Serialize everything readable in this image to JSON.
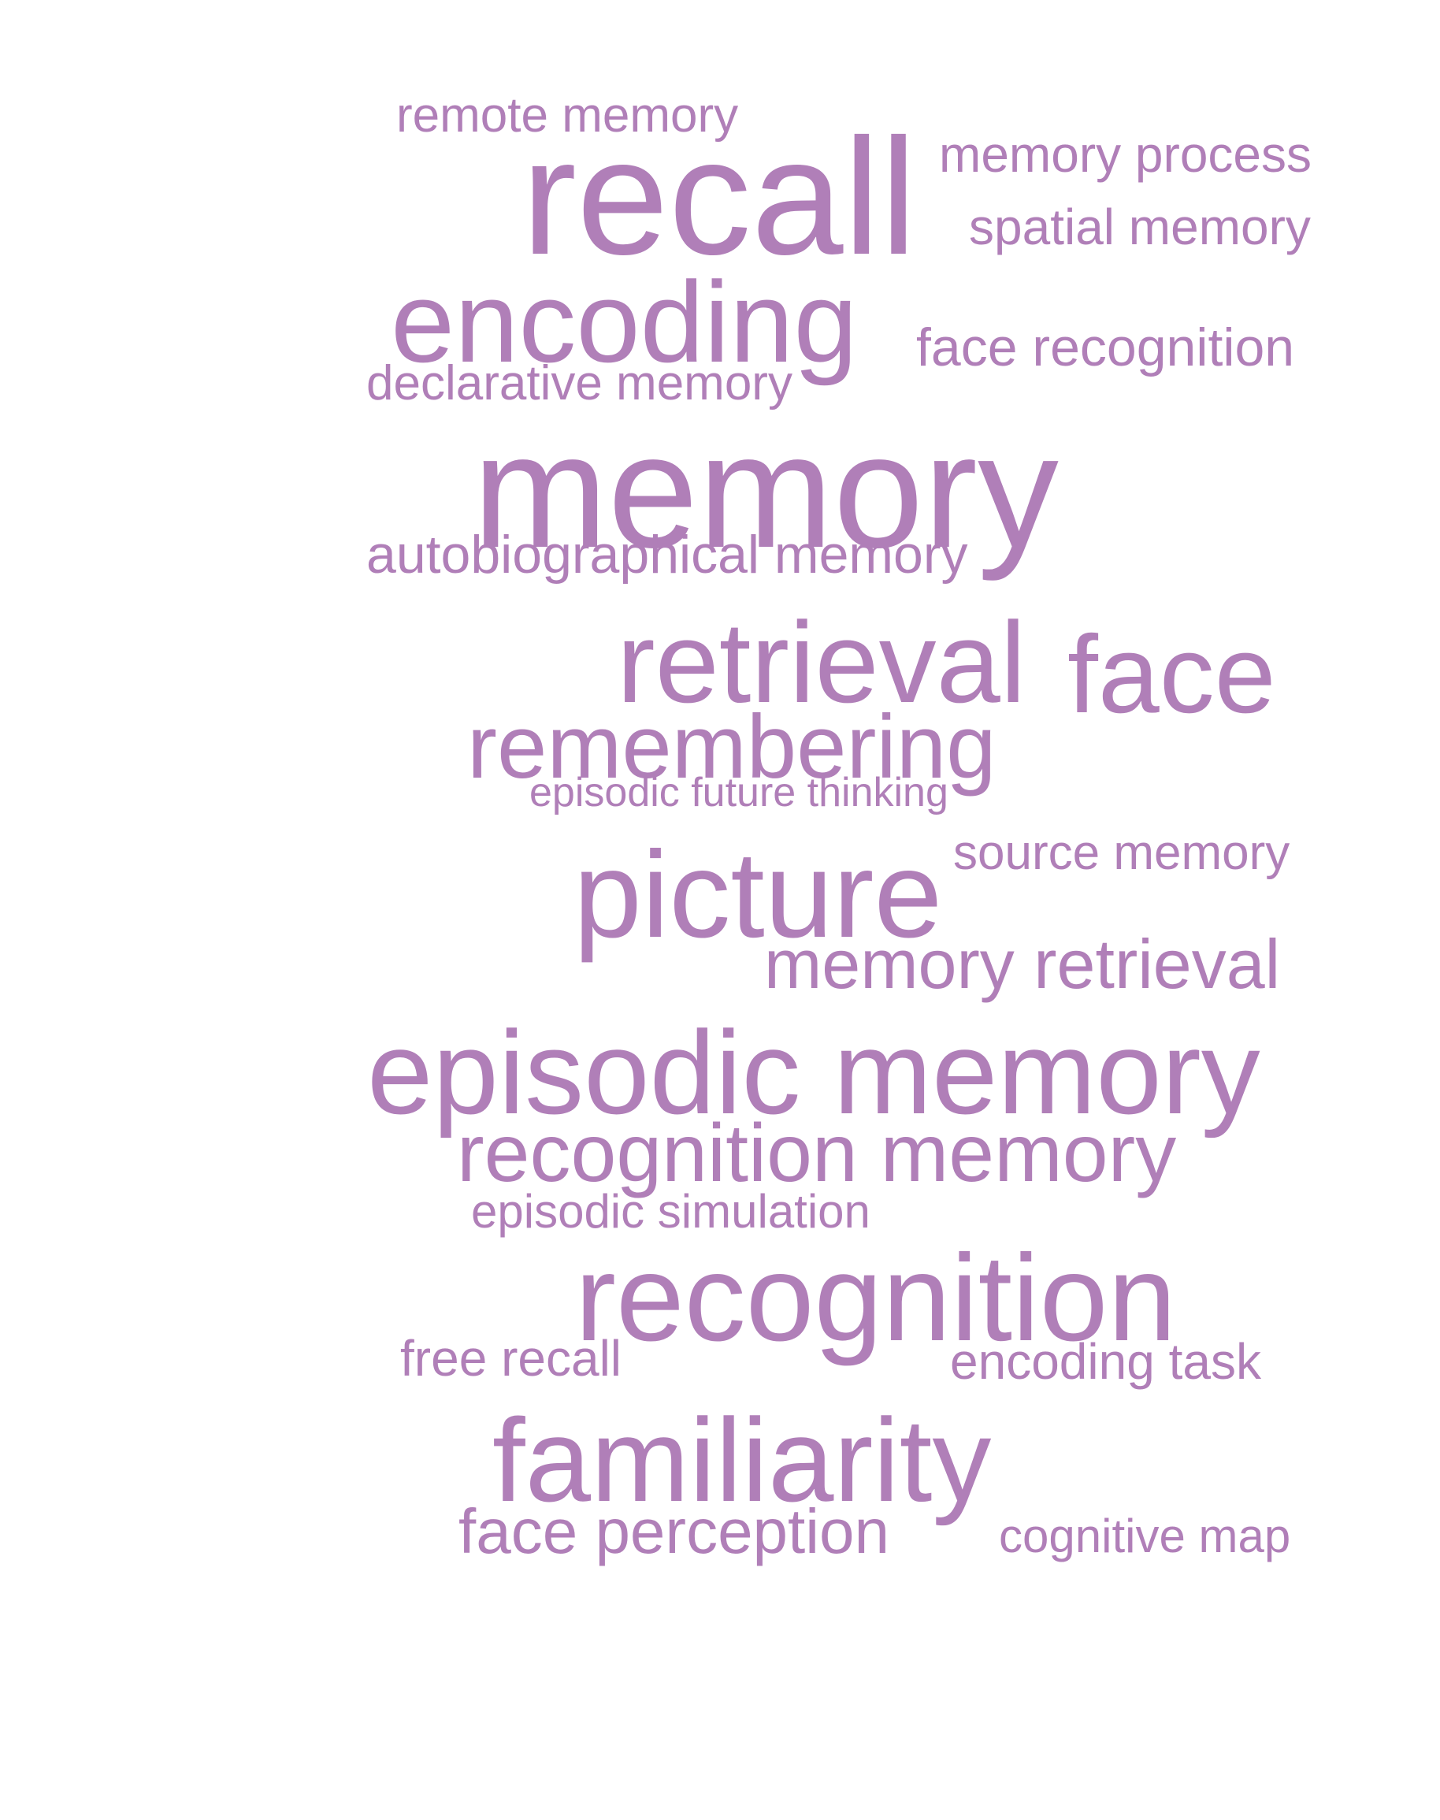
{
  "word_cloud": {
    "color": "#b07fb8",
    "words": [
      {
        "text": "remote memory"
      },
      {
        "text": "recall"
      },
      {
        "text": "memory process"
      },
      {
        "text": "spatial memory"
      },
      {
        "text": "encoding"
      },
      {
        "text": "face recognition"
      },
      {
        "text": "declarative memory"
      },
      {
        "text": "memory"
      },
      {
        "text": "autobiographical memory"
      },
      {
        "text": "retrieval"
      },
      {
        "text": "face"
      },
      {
        "text": "remembering"
      },
      {
        "text": "episodic future thinking"
      },
      {
        "text": "source memory"
      },
      {
        "text": "picture"
      },
      {
        "text": "memory retrieval"
      },
      {
        "text": "episodic memory"
      },
      {
        "text": "recognition memory"
      },
      {
        "text": "episodic simulation"
      },
      {
        "text": "recognition"
      },
      {
        "text": "free recall"
      },
      {
        "text": "encoding task"
      },
      {
        "text": "familiarity"
      },
      {
        "text": "face perception"
      },
      {
        "text": "cognitive map"
      }
    ]
  }
}
